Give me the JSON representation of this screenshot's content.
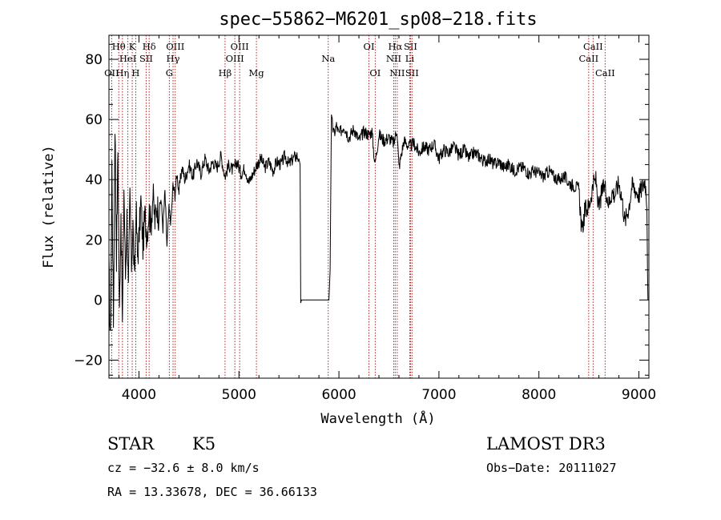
{
  "chart_data": {
    "type": "line",
    "title": "spec−55862−M6201_sp08−218.fits",
    "xlabel": "Wavelength (Å)",
    "ylabel": "Flux (relative)",
    "xlim": [
      3700,
      9100
    ],
    "ylim": [
      -26,
      88
    ],
    "x_ticks": [
      4000,
      5000,
      6000,
      7000,
      8000,
      9000
    ],
    "y_ticks": [
      -20,
      0,
      20,
      40,
      60,
      80
    ],
    "grid": false,
    "line_color": "#000000",
    "marker_color": "#b22222",
    "series": [
      {
        "name": "flux",
        "x": [
          3700,
          3715,
          3730,
          3745,
          3760,
          3775,
          3790,
          3805,
          3820,
          3835,
          3850,
          3865,
          3880,
          3895,
          3910,
          3925,
          3940,
          3955,
          3970,
          3985,
          4000,
          4020,
          4040,
          4060,
          4080,
          4100,
          4120,
          4140,
          4160,
          4180,
          4200,
          4220,
          4240,
          4260,
          4280,
          4300,
          4320,
          4340,
          4360,
          4380,
          4400,
          4430,
          4460,
          4500,
          4540,
          4580,
          4620,
          4660,
          4700,
          4740,
          4780,
          4820,
          4860,
          4900,
          4940,
          4980,
          5020,
          5060,
          5100,
          5140,
          5180,
          5220,
          5260,
          5300,
          5340,
          5380,
          5420,
          5460,
          5500,
          5540,
          5580,
          5600,
          5612,
          5618,
          5625,
          5900,
          5912,
          5925,
          5950,
          5975,
          6000,
          6050,
          6100,
          6150,
          6200,
          6250,
          6300,
          6330,
          6360,
          6400,
          6450,
          6500,
          6550,
          6580,
          6600,
          6650,
          6700,
          6750,
          6800,
          6850,
          6900,
          6950,
          7000,
          7050,
          7100,
          7150,
          7200,
          7250,
          7300,
          7350,
          7400,
          7450,
          7500,
          7550,
          7600,
          7650,
          7700,
          7750,
          7800,
          7850,
          7900,
          7950,
          8000,
          8050,
          8100,
          8150,
          8200,
          8250,
          8300,
          8350,
          8400,
          8430,
          8460,
          8500,
          8540,
          8570,
          8600,
          8630,
          8660,
          8700,
          8730,
          8760,
          8800,
          8830,
          8860,
          8900,
          8930,
          8960,
          9000,
          9040,
          9060,
          9080,
          9090
        ],
        "y": [
          10,
          -15,
          45,
          -8,
          60,
          15,
          50,
          -5,
          30,
          -9,
          38,
          8,
          28,
          2,
          35,
          12,
          25,
          5,
          32,
          14,
          20,
          33,
          18,
          28,
          22,
          30,
          25,
          35,
          26,
          32,
          28,
          34,
          24,
          36,
          18,
          30,
          26,
          38,
          35,
          42,
          36,
          44,
          40,
          45,
          41,
          46,
          42,
          47,
          43,
          46,
          44,
          48,
          41,
          45,
          43,
          46,
          42,
          44,
          39,
          42,
          45,
          47,
          44,
          46,
          43,
          46,
          45,
          48,
          45,
          47,
          48,
          47,
          45,
          -1,
          0,
          0,
          10,
          60,
          55,
          58,
          55,
          58,
          54,
          57,
          53,
          56,
          55,
          56,
          45,
          55,
          53,
          54,
          52,
          57,
          44,
          53,
          51,
          52,
          49,
          51,
          50,
          52,
          47,
          50,
          49,
          51,
          48,
          50,
          47,
          49,
          48,
          46,
          47,
          45,
          46,
          44,
          45,
          43,
          44,
          44,
          42,
          43,
          42,
          41,
          43,
          41,
          40,
          41,
          39,
          38,
          37,
          22,
          30,
          31,
          38,
          40,
          30,
          36,
          38,
          32,
          36,
          35,
          39,
          34,
          26,
          31,
          38,
          37,
          35,
          38,
          40,
          33,
          0
        ]
      }
    ],
    "markers": [
      {
        "label": "Hθ",
        "wl": 3798,
        "row": 1
      },
      {
        "label": "OII",
        "wl": 3727,
        "row": 3
      },
      {
        "label": "Hη",
        "wl": 3835,
        "row": 3
      },
      {
        "label": "HeI",
        "wl": 3889,
        "row": 2
      },
      {
        "label": "K",
        "wl": 3933,
        "row": 1
      },
      {
        "label": "H",
        "wl": 3968,
        "row": 3
      },
      {
        "label": "SII",
        "wl": 4072,
        "row": 2
      },
      {
        "label": "Hδ",
        "wl": 4102,
        "row": 1
      },
      {
        "label": "OIII",
        "wl": 4363,
        "row": 1
      },
      {
        "label": "Hγ",
        "wl": 4341,
        "row": 2
      },
      {
        "label": "G",
        "wl": 4304,
        "row": 3
      },
      {
        "label": "Hβ",
        "wl": 4861,
        "row": 3
      },
      {
        "label": "OIII",
        "wl": 5007,
        "row": 1
      },
      {
        "label": "OIII",
        "wl": 4959,
        "row": 2
      },
      {
        "label": "Mg",
        "wl": 5175,
        "row": 3
      },
      {
        "label": "Na",
        "wl": 5893,
        "row": 2
      },
      {
        "label": "OI",
        "wl": 6300,
        "row": 1
      },
      {
        "label": "OI",
        "wl": 6363,
        "row": 3
      },
      {
        "label": "Hα",
        "wl": 6563,
        "row": 1
      },
      {
        "label": "NII",
        "wl": 6548,
        "row": 2
      },
      {
        "label": "NII",
        "wl": 6583,
        "row": 3
      },
      {
        "label": "SII",
        "wl": 6716,
        "row": 1
      },
      {
        "label": "Li",
        "wl": 6708,
        "row": 2
      },
      {
        "label": "SII",
        "wl": 6731,
        "row": 3
      },
      {
        "label": "CaII",
        "wl": 8542,
        "row": 1
      },
      {
        "label": "CaII",
        "wl": 8498,
        "row": 2
      },
      {
        "label": "CaII",
        "wl": 8662,
        "row": 3
      }
    ]
  },
  "info": {
    "class": "STAR",
    "subclass": "K5",
    "survey": "LAMOST DR3",
    "cz": "cz = −32.6 ± 8.0 km/s",
    "obs_date": "Obs−Date: 20111027",
    "coords": "RA =  13.33678, DEC =  36.66133"
  }
}
